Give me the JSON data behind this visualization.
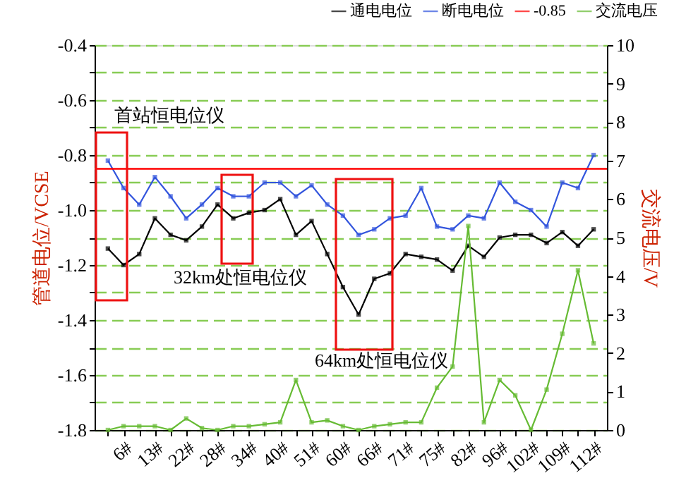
{
  "chart_data": {
    "type": "line",
    "ylabel": "管道电位/VCSE",
    "y2label": "交流电压/V",
    "categories": [
      null,
      "6#",
      null,
      "13#",
      null,
      "22#",
      null,
      "28#",
      null,
      "34#",
      null,
      "40#",
      null,
      "51#",
      null,
      "60#",
      null,
      "66#",
      null,
      "71#",
      null,
      "75#",
      null,
      "82#",
      null,
      "96#",
      null,
      "102#",
      null,
      "109#",
      null,
      "112#"
    ],
    "series": [
      {
        "name": "通电电位",
        "color": "#000000",
        "values": [
          -1.14,
          -1.2,
          -1.16,
          -1.03,
          -1.09,
          -1.11,
          -1.06,
          -0.98,
          -1.03,
          -1.01,
          -1.0,
          -0.96,
          -1.09,
          -1.04,
          -1.16,
          -1.28,
          -1.38,
          -1.25,
          -1.23,
          -1.16,
          -1.17,
          -1.18,
          -1.22,
          -1.13,
          -1.17,
          -1.1,
          -1.09,
          -1.09,
          -1.12,
          -1.08,
          -1.13,
          -1.07
        ]
      },
      {
        "name": "断电电位",
        "color": "#3355dd",
        "values": [
          -0.82,
          -0.92,
          -0.98,
          -0.88,
          -0.95,
          -1.03,
          -0.98,
          -0.92,
          -0.95,
          -0.95,
          -0.9,
          -0.9,
          -0.95,
          -0.91,
          -0.98,
          -1.02,
          -1.09,
          -1.07,
          -1.03,
          -1.02,
          -0.92,
          -1.06,
          -1.07,
          -1.02,
          -1.03,
          -0.9,
          -0.97,
          -1.0,
          -1.06,
          -0.9,
          -0.92,
          -0.8
        ]
      },
      {
        "name": "交流电压",
        "color": "#66bb33",
        "axis": "y2",
        "values": [
          0.0,
          0.1,
          0.1,
          0.1,
          0.0,
          0.3,
          0.05,
          0.0,
          0.1,
          0.1,
          0.15,
          0.2,
          1.3,
          0.2,
          0.25,
          0.1,
          0.0,
          0.1,
          0.15,
          0.2,
          0.2,
          1.1,
          1.65,
          5.3,
          0.2,
          1.3,
          0.9,
          0.0,
          1.05,
          2.5,
          4.15,
          2.25
        ]
      }
    ],
    "ref_lines": [
      {
        "axis": "y",
        "value": -0.85,
        "label": "-0.85",
        "color": "#ff0000"
      }
    ],
    "ylim": [
      -1.8,
      -0.4
    ],
    "yticks": [
      -0.4,
      {
        "value": -0.5,
        "label": null
      },
      -0.6,
      {
        "value": -0.7,
        "label": null
      },
      -0.8,
      {
        "value": -0.9,
        "label": null
      },
      {
        "value": -1.0,
        "label": "-1.0"
      },
      {
        "value": -1.1,
        "label": null
      },
      -1.2,
      {
        "value": -1.3,
        "label": null
      },
      -1.4,
      {
        "value": -1.5,
        "label": null
      },
      -1.6,
      {
        "value": -1.7,
        "label": null
      },
      -1.8
    ],
    "y2lim": [
      0,
      10
    ],
    "y2ticks": [
      0,
      1,
      2,
      3,
      4,
      5,
      6,
      7,
      8,
      9,
      10
    ],
    "annotations": [
      "首站恒电位仪",
      "32km处恒电位仪",
      "64km处恒电位仪"
    ],
    "grid": "y",
    "legend": "top right",
    "marker": "square",
    "line_style": "solid"
  }
}
